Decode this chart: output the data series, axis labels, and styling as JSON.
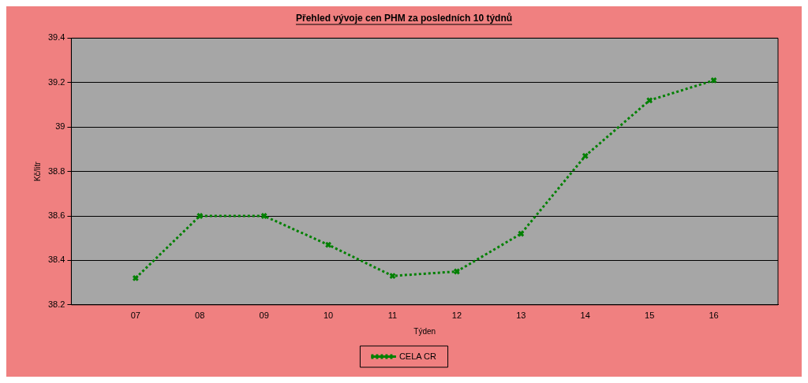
{
  "chart_data": {
    "type": "line",
    "title": "Přehled vývoje cen PHM za posledních 10 týdnů",
    "xlabel": "Týden",
    "ylabel": "Kč/litr",
    "x": [
      7,
      8,
      9,
      10,
      11,
      12,
      13,
      14,
      15,
      16
    ],
    "xlim": [
      6,
      17
    ],
    "xticks": [
      {
        "value": 7,
        "label": "07"
      },
      {
        "value": 8,
        "label": "08"
      },
      {
        "value": 9,
        "label": "09"
      },
      {
        "value": 10,
        "label": "10"
      },
      {
        "value": 11,
        "label": "11"
      },
      {
        "value": 12,
        "label": "12"
      },
      {
        "value": 13,
        "label": "13"
      },
      {
        "value": 14,
        "label": "14"
      },
      {
        "value": 15,
        "label": "15"
      },
      {
        "value": 16,
        "label": "16"
      }
    ],
    "ylim": [
      38.2,
      39.4
    ],
    "yticks": [
      38.2,
      38.4,
      38.6,
      38.8,
      39,
      39.2,
      39.4
    ],
    "series": [
      {
        "name": "CELA CR",
        "color": "#008000",
        "values": [
          38.32,
          38.6,
          38.6,
          38.47,
          38.33,
          38.35,
          38.52,
          38.87,
          39.12,
          39.21
        ]
      }
    ],
    "grid": "y",
    "legend": "bottom",
    "marker": "cross",
    "line_style": "dotted"
  }
}
